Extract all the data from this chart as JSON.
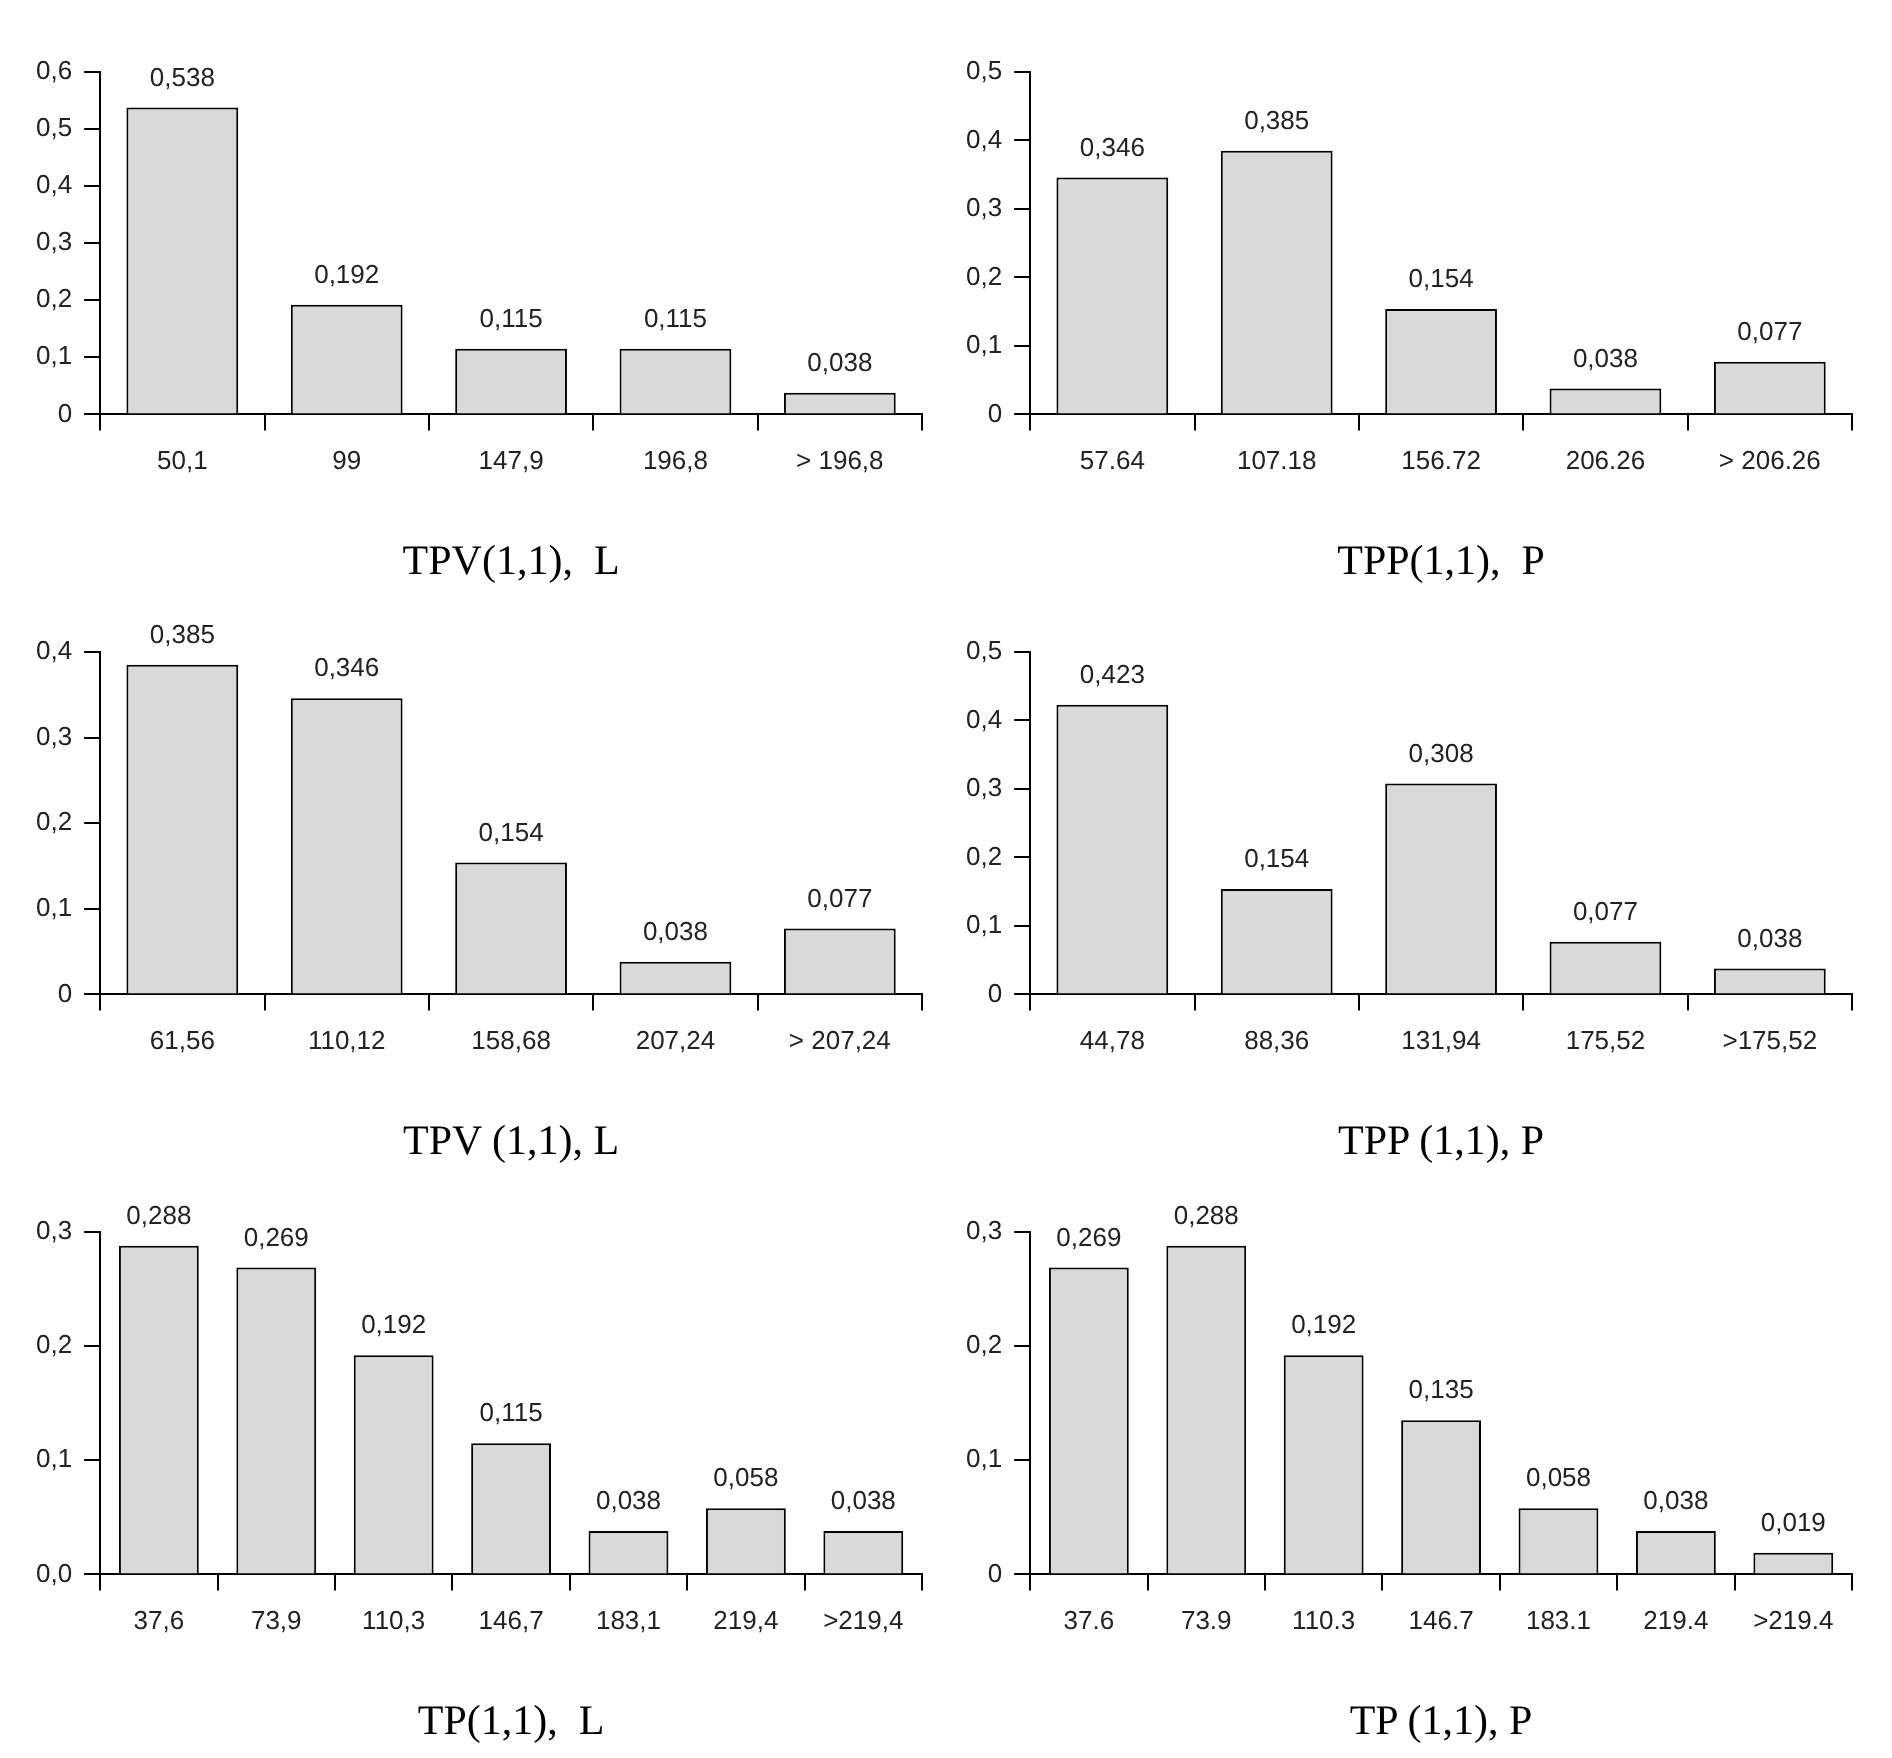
{
  "chart_data": [
    {
      "type": "bar",
      "xlabel": "TPV(1,1),  L",
      "categories": [
        "50,1",
        "99",
        "147,9",
        "196,8",
        "> 196,8"
      ],
      "values": [
        0.538,
        0.192,
        0.115,
        0.115,
        0.038
      ],
      "value_labels": [
        "0,538",
        "0,192",
        "0,115",
        "0,115",
        "0,038"
      ],
      "color": "#d9d9d9",
      "ylim": [
        0,
        0.6
      ],
      "yticks": [
        {
          "value": 0,
          "label": "0"
        },
        {
          "value": 0.1,
          "label": "0,1"
        },
        {
          "value": 0.2,
          "label": "0,2"
        },
        {
          "value": 0.3,
          "label": "0,3"
        },
        {
          "value": 0.4,
          "label": "0,4"
        },
        {
          "value": 0.5,
          "label": "0,5"
        },
        {
          "value": 0.6,
          "label": "0,6"
        }
      ]
    },
    {
      "type": "bar",
      "xlabel": "TPP(1,1),  P",
      "categories": [
        "57.64",
        "107.18",
        "156.72",
        "206.26",
        "> 206.26"
      ],
      "values": [
        0.346,
        0.385,
        0.154,
        0.038,
        0.077
      ],
      "value_labels": [
        "0,346",
        "0,385",
        "0,154",
        "0,038",
        "0,077"
      ],
      "color": "#d9d9d9",
      "ylim": [
        0,
        0.5
      ],
      "yticks": [
        {
          "value": 0,
          "label": "0"
        },
        {
          "value": 0.1,
          "label": "0,1"
        },
        {
          "value": 0.2,
          "label": "0,2"
        },
        {
          "value": 0.3,
          "label": "0,3"
        },
        {
          "value": 0.4,
          "label": "0,4"
        },
        {
          "value": 0.5,
          "label": "0,5"
        }
      ]
    },
    {
      "type": "bar",
      "xlabel": "TPV (1,1), L",
      "categories": [
        "61,56",
        "110,12",
        "158,68",
        "207,24",
        "> 207,24"
      ],
      "values": [
        0.385,
        0.346,
        0.154,
        0.038,
        0.077
      ],
      "value_labels": [
        "0,385",
        "0,346",
        "0,154",
        "0,038",
        "0,077"
      ],
      "color": "#d9d9d9",
      "ylim": [
        0,
        0.4
      ],
      "yticks": [
        {
          "value": 0,
          "label": "0"
        },
        {
          "value": 0.1,
          "label": "0,1"
        },
        {
          "value": 0.2,
          "label": "0,2"
        },
        {
          "value": 0.3,
          "label": "0,3"
        },
        {
          "value": 0.4,
          "label": "0,4"
        }
      ]
    },
    {
      "type": "bar",
      "xlabel": "TPP (1,1), P",
      "categories": [
        "44,78",
        "88,36",
        "131,94",
        "175,52",
        ">175,52"
      ],
      "values": [
        0.423,
        0.154,
        0.308,
        0.077,
        0.038
      ],
      "value_labels": [
        "0,423",
        "0,154",
        "0,308",
        "0,077",
        "0,038"
      ],
      "color": "#d9d9d9",
      "ylim": [
        0,
        0.5
      ],
      "yticks": [
        {
          "value": 0,
          "label": "0"
        },
        {
          "value": 0.1,
          "label": "0,1"
        },
        {
          "value": 0.2,
          "label": "0,2"
        },
        {
          "value": 0.3,
          "label": "0,3"
        },
        {
          "value": 0.4,
          "label": "0,4"
        },
        {
          "value": 0.5,
          "label": "0,5"
        }
      ]
    },
    {
      "type": "bar",
      "xlabel": "TP(1,1),  L",
      "categories": [
        "37,6",
        "73,9",
        "110,3",
        "146,7",
        "183,1",
        "219,4",
        ">219,4"
      ],
      "values": [
        0.288,
        0.269,
        0.192,
        0.115,
        0.038,
        0.058,
        0.038
      ],
      "value_labels": [
        "0,288",
        "0,269",
        "0,192",
        "0,115",
        "0,038",
        "0,058",
        "0,038"
      ],
      "color": "#d9d9d9",
      "ylim": [
        0,
        0.3
      ],
      "yticks": [
        {
          "value": 0,
          "label": "0,0"
        },
        {
          "value": 0.1,
          "label": "0,1"
        },
        {
          "value": 0.2,
          "label": "0,2"
        },
        {
          "value": 0.3,
          "label": "0,3"
        }
      ]
    },
    {
      "type": "bar",
      "xlabel": "TP (1,1), P",
      "categories": [
        "37.6",
        "73.9",
        "110.3",
        "146.7",
        "183.1",
        "219.4",
        ">219.4"
      ],
      "values": [
        0.269,
        0.288,
        0.192,
        0.135,
        0.058,
        0.038,
        0.019
      ],
      "value_labels": [
        "0,269",
        "0,288",
        "0,192",
        "0,135",
        "0,058",
        "0,038",
        "0,019"
      ],
      "color": "#d9d9d9",
      "ylim": [
        0,
        0.3
      ],
      "yticks": [
        {
          "value": 0,
          "label": "0"
        },
        {
          "value": 0.1,
          "label": "0,1"
        },
        {
          "value": 0.2,
          "label": "0,2"
        },
        {
          "value": 0.3,
          "label": "0,3"
        }
      ]
    }
  ]
}
